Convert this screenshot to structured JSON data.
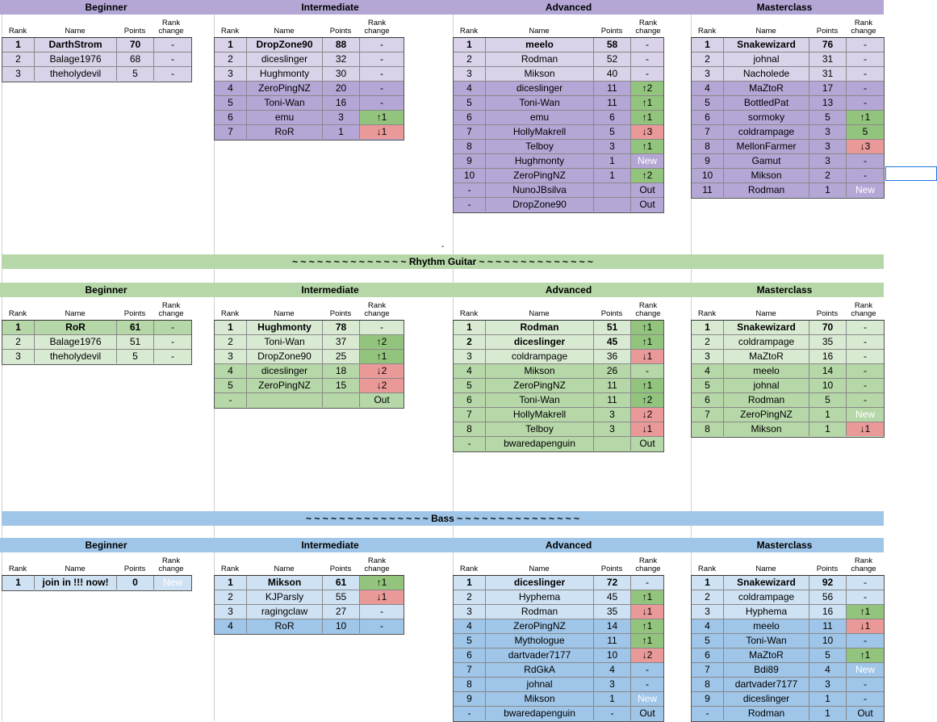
{
  "sections": [
    {
      "theme": "purple",
      "band_title": "",
      "tables": [
        {
          "category": "Beginner",
          "rows": [
            {
              "rank": "1",
              "name": "DarthStrom",
              "points": "70",
              "change": "-",
              "bold": true
            },
            {
              "rank": "2",
              "name": "Balage1976",
              "points": "68",
              "change": "-"
            },
            {
              "rank": "3",
              "name": "theholydevil",
              "points": "5",
              "change": "-"
            }
          ]
        },
        {
          "category": "Intermediate",
          "rows": [
            {
              "rank": "1",
              "name": "DropZone90",
              "points": "88",
              "change": "-",
              "bold": true
            },
            {
              "rank": "2",
              "name": "diceslinger",
              "points": "32",
              "change": "-"
            },
            {
              "rank": "3",
              "name": "Hughmonty",
              "points": "30",
              "change": "-"
            },
            {
              "rank": "4",
              "name": "ZeroPingNZ",
              "points": "20",
              "change": "-"
            },
            {
              "rank": "5",
              "name": "Toni-Wan",
              "points": "16",
              "change": "-"
            },
            {
              "rank": "6",
              "name": "emu",
              "points": "3",
              "change": "↑1",
              "status": "up"
            },
            {
              "rank": "7",
              "name": "RoR",
              "points": "1",
              "change": "↓1",
              "status": "down"
            }
          ]
        },
        {
          "category": "Advanced",
          "rows": [
            {
              "rank": "1",
              "name": "meelo",
              "points": "58",
              "change": "-",
              "bold": true
            },
            {
              "rank": "2",
              "name": "Rodman",
              "points": "52",
              "change": "-"
            },
            {
              "rank": "3",
              "name": "Mikson",
              "points": "40",
              "change": "-"
            },
            {
              "rank": "4",
              "name": "diceslinger",
              "points": "11",
              "change": "↑2",
              "status": "up"
            },
            {
              "rank": "5",
              "name": "Toni-Wan",
              "points": "11",
              "change": "↑1",
              "status": "up"
            },
            {
              "rank": "6",
              "name": "emu",
              "points": "6",
              "change": "↑1",
              "status": "up"
            },
            {
              "rank": "7",
              "name": "HollyMakrell",
              "points": "5",
              "change": "↓3",
              "status": "down"
            },
            {
              "rank": "8",
              "name": "Telboy",
              "points": "3",
              "change": "↑1",
              "status": "up"
            },
            {
              "rank": "9",
              "name": "Hughmonty",
              "points": "1",
              "change": "New",
              "status": "new"
            },
            {
              "rank": "10",
              "name": "ZeroPingNZ",
              "points": "1",
              "change": "↑2",
              "status": "up"
            },
            {
              "rank": "-",
              "name": "NunoJBsilva",
              "points": "",
              "change": "Out"
            },
            {
              "rank": "-",
              "name": "DropZone90",
              "points": "",
              "change": "Out"
            }
          ]
        },
        {
          "category": "Masterclass",
          "rows": [
            {
              "rank": "1",
              "name": "Snakewizard",
              "points": "76",
              "change": "-",
              "bold": true
            },
            {
              "rank": "2",
              "name": "johnal",
              "points": "31",
              "change": "-"
            },
            {
              "rank": "3",
              "name": "Nacholede",
              "points": "31",
              "change": "-"
            },
            {
              "rank": "4",
              "name": "MaZtoR",
              "points": "17",
              "change": "-"
            },
            {
              "rank": "5",
              "name": "BottledPat",
              "points": "13",
              "change": "-"
            },
            {
              "rank": "6",
              "name": "sormoky",
              "points": "5",
              "change": "↑1",
              "status": "up"
            },
            {
              "rank": "7",
              "name": "coldrampage",
              "points": "3",
              "change": "5",
              "status": "up"
            },
            {
              "rank": "8",
              "name": "MellonFarmer",
              "points": "3",
              "change": "↓3",
              "status": "down"
            },
            {
              "rank": "9",
              "name": "Gamut",
              "points": "3",
              "change": "-"
            },
            {
              "rank": "10",
              "name": "Mikson",
              "points": "2",
              "change": "-"
            },
            {
              "rank": "11",
              "name": "Rodman",
              "points": "1",
              "change": "New",
              "status": "new"
            }
          ]
        }
      ]
    },
    {
      "theme": "green",
      "band_title": "~ ~ ~ ~ ~ ~ ~ ~ ~ ~ ~ ~ ~ ~ Rhythm Guitar ~ ~ ~ ~ ~ ~ ~ ~ ~ ~ ~ ~ ~ ~",
      "tables": [
        {
          "category": "Beginner",
          "rows": [
            {
              "rank": "1",
              "name": "RoR",
              "points": "61",
              "change": "-",
              "bold": true
            },
            {
              "rank": "2",
              "name": "Balage1976",
              "points": "51",
              "change": "-"
            },
            {
              "rank": "3",
              "name": "theholydevil",
              "points": "5",
              "change": "-"
            }
          ]
        },
        {
          "category": "Intermediate",
          "rows": [
            {
              "rank": "1",
              "name": "Hughmonty",
              "points": "78",
              "change": "-",
              "bold": true
            },
            {
              "rank": "2",
              "name": "Toni-Wan",
              "points": "37",
              "change": "↑2",
              "status": "up"
            },
            {
              "rank": "3",
              "name": "DropZone90",
              "points": "25",
              "change": "↑1",
              "status": "up"
            },
            {
              "rank": "4",
              "name": "diceslinger",
              "points": "18",
              "change": "↓2",
              "status": "down"
            },
            {
              "rank": "5",
              "name": "ZeroPingNZ",
              "points": "15",
              "change": "↓2",
              "status": "down"
            },
            {
              "rank": "-",
              "name": "",
              "points": "",
              "change": "Out"
            }
          ]
        },
        {
          "category": "Advanced",
          "rows": [
            {
              "rank": "1",
              "name": "Rodman",
              "points": "51",
              "change": "↑1",
              "status": "up",
              "bold": true
            },
            {
              "rank": "2",
              "name": "diceslinger",
              "points": "45",
              "change": "↑1",
              "status": "up",
              "bold": true
            },
            {
              "rank": "3",
              "name": "coldrampage",
              "points": "36",
              "change": "↓1",
              "status": "down"
            },
            {
              "rank": "4",
              "name": "Mikson",
              "points": "26",
              "change": "-"
            },
            {
              "rank": "5",
              "name": "ZeroPingNZ",
              "points": "11",
              "change": "↑1",
              "status": "up"
            },
            {
              "rank": "6",
              "name": "Toni-Wan",
              "points": "11",
              "change": "↑2",
              "status": "up"
            },
            {
              "rank": "7",
              "name": "HollyMakrell",
              "points": "3",
              "change": "↓2",
              "status": "down"
            },
            {
              "rank": "8",
              "name": "Telboy",
              "points": "3",
              "change": "↓1",
              "status": "down"
            },
            {
              "rank": "-",
              "name": "bwaredapenguin",
              "points": "",
              "change": "Out"
            }
          ]
        },
        {
          "category": "Masterclass",
          "rows": [
            {
              "rank": "1",
              "name": "Snakewizard",
              "points": "70",
              "change": "-",
              "bold": true
            },
            {
              "rank": "2",
              "name": "coldrampage",
              "points": "35",
              "change": "-"
            },
            {
              "rank": "3",
              "name": "MaZtoR",
              "points": "16",
              "change": "-"
            },
            {
              "rank": "4",
              "name": "meelo",
              "points": "14",
              "change": "-"
            },
            {
              "rank": "5",
              "name": "johnal",
              "points": "10",
              "change": "-"
            },
            {
              "rank": "6",
              "name": "Rodman",
              "points": "5",
              "change": "-"
            },
            {
              "rank": "7",
              "name": "ZeroPingNZ",
              "points": "1",
              "change": "New",
              "status": "new"
            },
            {
              "rank": "8",
              "name": "Mikson",
              "points": "1",
              "change": "↓1",
              "status": "down"
            }
          ]
        }
      ]
    },
    {
      "theme": "blue",
      "band_title": "~ ~ ~ ~ ~ ~ ~ ~ ~ ~ ~ ~ ~ ~ ~ Bass ~ ~ ~ ~ ~ ~ ~ ~ ~ ~ ~ ~ ~ ~ ~",
      "tables": [
        {
          "category": "Beginner",
          "rows": [
            {
              "rank": "1",
              "name": "join in !!! now!",
              "points": "0",
              "change": "New",
              "status": "new",
              "bold": true
            }
          ]
        },
        {
          "category": "Intermediate",
          "rows": [
            {
              "rank": "1",
              "name": "Mikson",
              "points": "61",
              "change": "↑1",
              "status": "up",
              "bold": true
            },
            {
              "rank": "2",
              "name": "KJParsly",
              "points": "55",
              "change": "↓1",
              "status": "down"
            },
            {
              "rank": "3",
              "name": "ragingclaw",
              "points": "27",
              "change": "-"
            },
            {
              "rank": "4",
              "name": "RoR",
              "points": "10",
              "change": "-"
            }
          ]
        },
        {
          "category": "Advanced",
          "rows": [
            {
              "rank": "1",
              "name": "diceslinger",
              "points": "72",
              "change": "-",
              "bold": true
            },
            {
              "rank": "2",
              "name": "Hyphema",
              "points": "45",
              "change": "↑1",
              "status": "up"
            },
            {
              "rank": "3",
              "name": "Rodman",
              "points": "35",
              "change": "↓1",
              "status": "down"
            },
            {
              "rank": "4",
              "name": "ZeroPingNZ",
              "points": "14",
              "change": "↑1",
              "status": "up"
            },
            {
              "rank": "5",
              "name": "Mythologue",
              "points": "11",
              "change": "↑1",
              "status": "up"
            },
            {
              "rank": "6",
              "name": "dartvader7177",
              "points": "10",
              "change": "↓2",
              "status": "down"
            },
            {
              "rank": "7",
              "name": "RdGkA",
              "points": "4",
              "change": "-"
            },
            {
              "rank": "8",
              "name": "johnal",
              "points": "3",
              "change": "-"
            },
            {
              "rank": "9",
              "name": "Mikson",
              "points": "1",
              "change": "New",
              "status": "new"
            },
            {
              "rank": "-",
              "name": "bwaredapenguin",
              "points": "-",
              "change": "Out"
            }
          ]
        },
        {
          "category": "Masterclass",
          "rows": [
            {
              "rank": "1",
              "name": "Snakewizard",
              "points": "92",
              "change": "-",
              "bold": true
            },
            {
              "rank": "2",
              "name": "coldrampage",
              "points": "56",
              "change": "-"
            },
            {
              "rank": "3",
              "name": "Hyphema",
              "points": "16",
              "change": "↑1",
              "status": "up"
            },
            {
              "rank": "4",
              "name": "meelo",
              "points": "11",
              "change": "↓1",
              "status": "down"
            },
            {
              "rank": "5",
              "name": "Toni-Wan",
              "points": "10",
              "change": "-"
            },
            {
              "rank": "6",
              "name": "MaZtoR",
              "points": "5",
              "change": "↑1",
              "status": "up"
            },
            {
              "rank": "7",
              "name": "Bdi89",
              "points": "4",
              "change": "New",
              "status": "new"
            },
            {
              "rank": "8",
              "name": "dartvader7177",
              "points": "3",
              "change": "-"
            },
            {
              "rank": "9",
              "name": "diceslinger",
              "points": "1",
              "change": "-"
            },
            {
              "rank": "-",
              "name": "Rodman",
              "points": "1",
              "change": "Out"
            }
          ]
        }
      ]
    }
  ],
  "column_headers": {
    "rank": "Rank",
    "name": "Name",
    "points": "Points",
    "change": "Rank change"
  },
  "stray_mark": "-",
  "colors": {
    "purple_light": "#d9d2e9",
    "purple_dark": "#b4a7d6",
    "green_light": "#d9ead3",
    "green_dark": "#b6d7a8",
    "blue_light": "#cfe2f3",
    "blue_dark": "#9fc5e8",
    "up": "#93c47d",
    "down": "#ea9999"
  }
}
